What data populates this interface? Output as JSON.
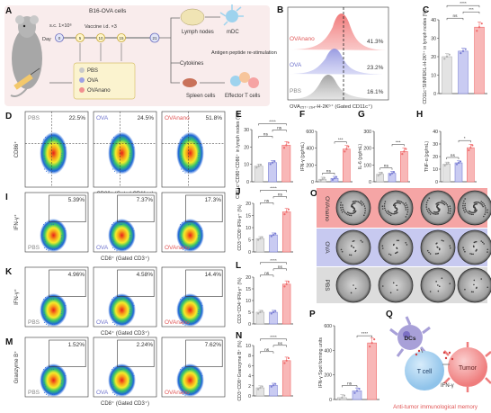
{
  "figure": {
    "panel_letters": [
      "A",
      "B",
      "C",
      "D",
      "E",
      "F",
      "G",
      "H",
      "I",
      "J",
      "K",
      "L",
      "M",
      "N",
      "O",
      "P",
      "Q"
    ],
    "colors": {
      "pbs": "#b0b0b0",
      "ova": "#7b7fd4",
      "ovanano": "#ef6b6b",
      "ovanano_bg": "#f5a5a5",
      "ova_bg": "#c7c9f0",
      "pbs_bg": "#d9d9d9",
      "schematic_bg": "#f7eaea",
      "text_pbs": "#888888",
      "text_ova": "#6f73cc",
      "text_ovanano": "#e05555"
    }
  },
  "panelA": {
    "title": "B16-OVA cells",
    "sc_label": "s.c. 1×10⁶",
    "day_label": "Day",
    "vaccine_label": "Vaccine i.d. ×3",
    "days": [
      "0",
      "5",
      "10",
      "15",
      "21"
    ],
    "legend": [
      "PBS",
      "OVA",
      "OVAnano"
    ],
    "outputs": {
      "lymph": "Lymph nodes",
      "mdc": "mDC",
      "cytokines": "Cytokines",
      "spleen": "Spleen cells",
      "restim": "Antigen peptide re-stimulation",
      "effector": "Effector T cells"
    }
  },
  "panelB": {
    "xlabel": "OVA₂₅₇₋₂₆₄-H-2Kᵇ⁺ (Gated CD11c⁺)",
    "series": [
      {
        "name": "OVAnano",
        "pct": "41.3%"
      },
      {
        "name": "OVA",
        "pct": "23.2%"
      },
      {
        "name": "PBS",
        "pct": "16.1%"
      }
    ]
  },
  "panelC": {
    "ylabel": "CD11c⁺SIINFEKL-H-2Kᵇ⁺ in lymph nodes (%)",
    "yticks": [
      "0",
      "10",
      "20",
      "30",
      "40"
    ],
    "sig": [
      "ns",
      "***",
      "****"
    ],
    "chart_data": {
      "type": "bar",
      "categories": [
        "PBS",
        "OVA",
        "OVAnano"
      ],
      "values": [
        20,
        23,
        36
      ],
      "ylim": [
        0,
        40
      ]
    }
  },
  "panelD": {
    "xlabel": "CD80⁺ (Gated CD11c⁺)",
    "ylabel": "CD86⁺",
    "plots": [
      {
        "name": "PBS",
        "pct": "22.5%"
      },
      {
        "name": "OVA",
        "pct": "24.5%"
      },
      {
        "name": "OVAnano",
        "pct": "51.8%"
      }
    ]
  },
  "panelE": {
    "ylabel": "CD11c⁺CD80⁺CD86⁺ in lymph nodes (%)",
    "yticks": [
      "0",
      "10",
      "20",
      "30"
    ],
    "sig": [
      "ns",
      "ns",
      "****"
    ],
    "chart_data": {
      "type": "bar",
      "categories": [
        "PBS",
        "OVA",
        "OVAnano"
      ],
      "values": [
        9,
        11,
        21
      ],
      "ylim": [
        0,
        30
      ]
    }
  },
  "panelF": {
    "ylabel": "IFN-γ (pg/mL)",
    "yticks": [
      "0",
      "200",
      "400",
      "600"
    ],
    "sig": [
      "ns",
      "***"
    ],
    "chart_data": {
      "type": "bar",
      "categories": [
        "PBS",
        "OVA",
        "OVAnano"
      ],
      "values": [
        30,
        40,
        390
      ],
      "ylim": [
        0,
        600
      ]
    }
  },
  "panelG": {
    "ylabel": "IL-6 (pg/mL)",
    "yticks": [
      "0",
      "100",
      "200",
      "300"
    ],
    "sig": [
      "ns",
      "***"
    ],
    "chart_data": {
      "type": "bar",
      "categories": [
        "PBS",
        "OVA",
        "OVAnano"
      ],
      "values": [
        45,
        50,
        180
      ],
      "ylim": [
        0,
        300
      ]
    }
  },
  "panelH": {
    "ylabel": "TNF-α (pg/mL)",
    "yticks": [
      "0",
      "10",
      "20",
      "30",
      "40"
    ],
    "sig": [
      "ns",
      "*"
    ],
    "chart_data": {
      "type": "bar",
      "categories": [
        "PBS",
        "OVA",
        "OVAnano"
      ],
      "values": [
        14,
        15,
        27
      ],
      "ylim": [
        0,
        40
      ]
    }
  },
  "panelI": {
    "xlabel": "CD8⁺ (Gated CD3⁺)",
    "ylabel": "IFN-γ⁺",
    "plots": [
      {
        "name": "PBS",
        "pct": "5.39%"
      },
      {
        "name": "OVA",
        "pct": "7.37%"
      },
      {
        "name": "OVAnano",
        "pct": "17.3%"
      }
    ]
  },
  "panelJ": {
    "ylabel": "CD3⁺CD8⁺IFN-γ⁺ (%)",
    "yticks": [
      "0",
      "5",
      "10",
      "15",
      "20"
    ],
    "sig": [
      "ns",
      "ns",
      "****"
    ],
    "chart_data": {
      "type": "bar",
      "categories": [
        "PBS",
        "OVA",
        "OVAnano"
      ],
      "values": [
        5.5,
        7,
        16.5
      ],
      "ylim": [
        0,
        20
      ]
    }
  },
  "panelK": {
    "xlabel": "CD4⁺ (Gated CD3⁺)",
    "ylabel": "IFN-γ⁺",
    "plots": [
      {
        "name": "PBS",
        "pct": "4.96%"
      },
      {
        "name": "OVA",
        "pct": "4.58%"
      },
      {
        "name": "OVAnano",
        "pct": "14.4%"
      }
    ]
  },
  "panelL": {
    "ylabel": "CD3⁺CD4⁺IFN-γ⁺ (%)",
    "yticks": [
      "0",
      "5",
      "10",
      "15",
      "20"
    ],
    "sig": [
      "ns",
      "ns",
      "****"
    ],
    "chart_data": {
      "type": "bar",
      "categories": [
        "PBS",
        "OVA",
        "OVAnano"
      ],
      "values": [
        5,
        5,
        17
      ],
      "ylim": [
        0,
        20
      ]
    }
  },
  "panelM": {
    "xlabel": "CD8⁺ (Gated CD3⁺)",
    "ylabel": "Granzyme B⁺",
    "plots": [
      {
        "name": "PBS",
        "pct": "1.52%"
      },
      {
        "name": "OVA",
        "pct": "2.24%"
      },
      {
        "name": "OVAnano",
        "pct": "7.62%"
      }
    ]
  },
  "panelN": {
    "ylabel": "CD3⁺CD8⁺Granzyme B⁺ (%)",
    "yticks": [
      "0",
      "2",
      "4",
      "6",
      "8",
      "10"
    ],
    "sig": [
      "ns",
      "ns",
      "****"
    ],
    "chart_data": {
      "type": "bar",
      "categories": [
        "PBS",
        "OVA",
        "OVAnano"
      ],
      "values": [
        1.6,
        2.1,
        7
      ],
      "ylim": [
        0,
        10
      ]
    }
  },
  "panelO": {
    "rows": [
      "OVAnano",
      "OVA",
      "PBS"
    ]
  },
  "panelP": {
    "ylabel": "IFN-γ Spot forming units",
    "yticks": [
      "0",
      "200",
      "400",
      "600"
    ],
    "sig": [
      "ns",
      "****"
    ],
    "chart_data": {
      "type": "bar",
      "categories": [
        "PBS",
        "OVA",
        "OVAnano"
      ],
      "values": [
        15,
        70,
        460
      ],
      "ylim": [
        0,
        600
      ]
    }
  },
  "panelQ": {
    "dcs": "DCs",
    "tcell": "T cell",
    "tumor": "Tumor",
    "ifng": "IFN-γ",
    "caption": "Anti-tumor immunological memory"
  }
}
